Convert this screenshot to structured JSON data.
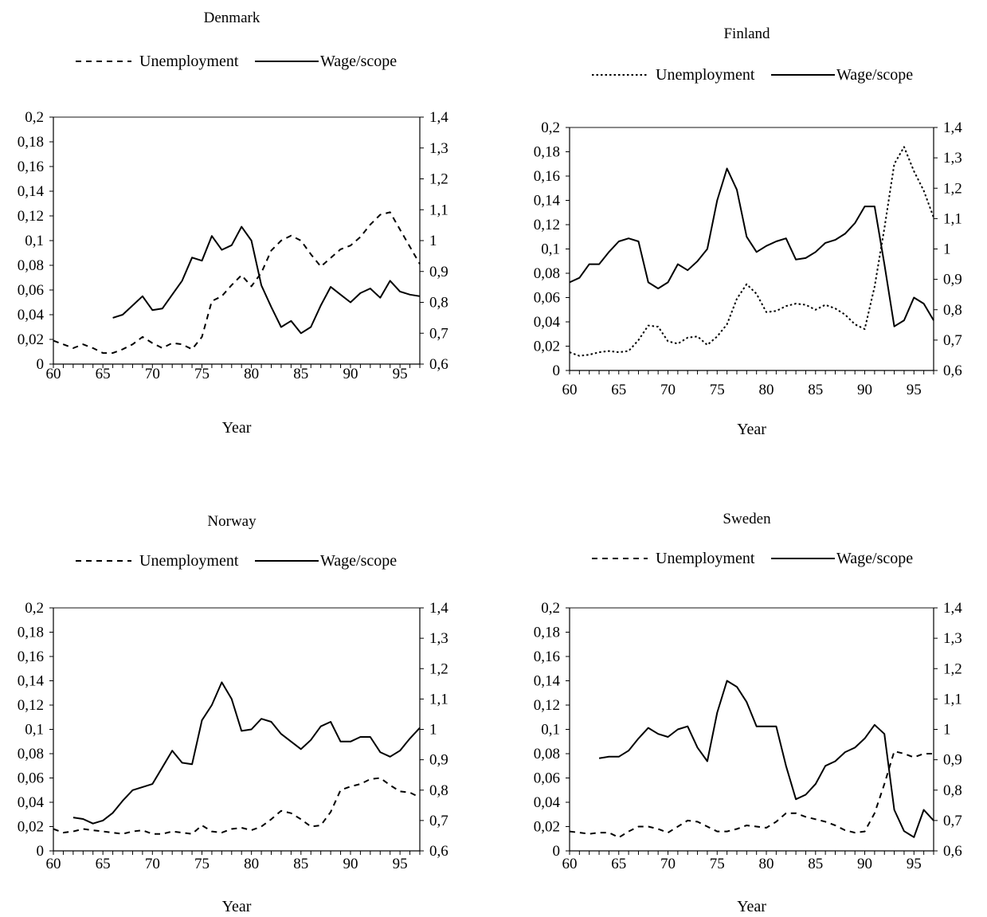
{
  "chart_data": [
    {
      "type": "line",
      "title": "Denmark",
      "xlabel": "Year",
      "xlim": [
        60,
        97
      ],
      "xticks": [
        60,
        65,
        70,
        75,
        80,
        85,
        90,
        95
      ],
      "x_tick_labels": [
        "60",
        "65",
        "70",
        "75",
        "80",
        "85",
        "90",
        "95"
      ],
      "ylim_left": [
        0,
        0.2
      ],
      "y_left_tick_labels": [
        "0",
        "0,02",
        "0,04",
        "0,06",
        "0,08",
        "0,1",
        "0,12",
        "0,14",
        "0,16",
        "0,18",
        "0,2"
      ],
      "ylim_right": [
        0.6,
        1.4
      ],
      "y_right_tick_labels": [
        "0,6",
        "0,7",
        "0,8",
        "0,9",
        "1",
        "1,1",
        "1,2",
        "1,3",
        "1,4"
      ],
      "legend_position": "top",
      "series": [
        {
          "name": "Unemployment",
          "axis": "left",
          "style": "dashed",
          "x": [
            60,
            61,
            62,
            63,
            64,
            65,
            66,
            67,
            68,
            69,
            70,
            71,
            72,
            73,
            74,
            75,
            76,
            77,
            78,
            79,
            80,
            81,
            82,
            83,
            84,
            85,
            86,
            87,
            88,
            89,
            90,
            91,
            92,
            93,
            94,
            95,
            96,
            97
          ],
          "values": [
            0.019,
            0.016,
            0.013,
            0.016,
            0.013,
            0.009,
            0.009,
            0.012,
            0.016,
            0.022,
            0.017,
            0.013,
            0.017,
            0.016,
            0.012,
            0.022,
            0.051,
            0.055,
            0.064,
            0.072,
            0.063,
            0.074,
            0.092,
            0.1,
            0.104,
            0.1,
            0.089,
            0.079,
            0.086,
            0.093,
            0.096,
            0.103,
            0.113,
            0.121,
            0.123,
            0.109,
            0.095,
            0.081
          ]
        },
        {
          "name": "Wage/scope",
          "axis": "right",
          "style": "solid",
          "x": [
            66,
            67,
            68,
            69,
            70,
            71,
            72,
            73,
            74,
            75,
            76,
            77,
            78,
            79,
            80,
            81,
            82,
            83,
            84,
            85,
            86,
            87,
            88,
            89,
            90,
            91,
            92,
            93,
            94,
            95,
            96,
            97
          ],
          "values": [
            0.75,
            0.76,
            0.79,
            0.82,
            0.775,
            0.78,
            0.825,
            0.87,
            0.945,
            0.935,
            1.015,
            0.97,
            0.985,
            1.045,
            1.0,
            0.855,
            0.785,
            0.72,
            0.74,
            0.7,
            0.72,
            0.79,
            0.85,
            0.825,
            0.8,
            0.83,
            0.845,
            0.815,
            0.87,
            0.835,
            0.825,
            0.82
          ]
        }
      ]
    },
    {
      "type": "line",
      "title": "Finland",
      "xlabel": "Year",
      "xlim": [
        60,
        97
      ],
      "xticks": [
        60,
        65,
        70,
        75,
        80,
        85,
        90,
        95
      ],
      "x_tick_labels": [
        "60",
        "65",
        "70",
        "75",
        "80",
        "85",
        "90",
        "95"
      ],
      "ylim_left": [
        0,
        0.2
      ],
      "y_left_tick_labels": [
        "0",
        "0,02",
        "0,04",
        "0,06",
        "0,08",
        "0,1",
        "0,12",
        "0,14",
        "0,16",
        "0,18",
        "0,2"
      ],
      "ylim_right": [
        0.6,
        1.4
      ],
      "y_right_tick_labels": [
        "0,6",
        "0,7",
        "0,8",
        "0,9",
        "1",
        "1,1",
        "1,2",
        "1,3",
        "1,4"
      ],
      "legend_position": "top",
      "series": [
        {
          "name": "Unemployment",
          "axis": "left",
          "style": "dotted",
          "x": [
            60,
            61,
            62,
            63,
            64,
            65,
            66,
            67,
            68,
            69,
            70,
            71,
            72,
            73,
            74,
            75,
            76,
            77,
            78,
            79,
            80,
            81,
            82,
            83,
            84,
            85,
            86,
            87,
            88,
            89,
            90,
            91,
            92,
            93,
            94,
            95,
            96,
            97
          ],
          "values": [
            0.015,
            0.012,
            0.013,
            0.015,
            0.016,
            0.015,
            0.016,
            0.025,
            0.037,
            0.036,
            0.024,
            0.022,
            0.027,
            0.028,
            0.021,
            0.028,
            0.038,
            0.059,
            0.071,
            0.063,
            0.048,
            0.049,
            0.053,
            0.055,
            0.054,
            0.05,
            0.054,
            0.051,
            0.046,
            0.038,
            0.034,
            0.069,
            0.117,
            0.17,
            0.184,
            0.164,
            0.148,
            0.126
          ]
        },
        {
          "name": "Wage/scope",
          "axis": "right",
          "style": "solid",
          "x": [
            60,
            61,
            62,
            63,
            64,
            65,
            66,
            67,
            68,
            69,
            70,
            71,
            72,
            73,
            74,
            75,
            76,
            77,
            78,
            79,
            80,
            81,
            82,
            83,
            84,
            85,
            86,
            87,
            88,
            89,
            90,
            91,
            92,
            93,
            94,
            95,
            96,
            97
          ],
          "values": [
            0.89,
            0.905,
            0.95,
            0.95,
            0.99,
            1.025,
            1.035,
            1.025,
            0.89,
            0.87,
            0.89,
            0.95,
            0.93,
            0.96,
            1.0,
            1.16,
            1.265,
            1.195,
            1.04,
            0.99,
            1.01,
            1.025,
            1.035,
            0.965,
            0.97,
            0.99,
            1.02,
            1.03,
            1.05,
            1.085,
            1.14,
            1.14,
            0.95,
            0.745,
            0.765,
            0.84,
            0.82,
            0.765
          ]
        }
      ]
    },
    {
      "type": "line",
      "title": "Norway",
      "xlabel": "Year",
      "xlim": [
        60,
        97
      ],
      "xticks": [
        60,
        65,
        70,
        75,
        80,
        85,
        90,
        95
      ],
      "x_tick_labels": [
        "60",
        "65",
        "70",
        "75",
        "80",
        "85",
        "90",
        "95"
      ],
      "ylim_left": [
        0,
        0.2
      ],
      "y_left_tick_labels": [
        "0",
        "0,02",
        "0,04",
        "0,06",
        "0,08",
        "0,1",
        "0,12",
        "0,14",
        "0,16",
        "0,18",
        "0,2"
      ],
      "ylim_right": [
        0.6,
        1.4
      ],
      "y_right_tick_labels": [
        "0,6",
        "0,7",
        "0,8",
        "0,9",
        "1",
        "1,1",
        "1,2",
        "1,3",
        "1,4"
      ],
      "legend_position": "top",
      "series": [
        {
          "name": "Unemployment",
          "axis": "left",
          "style": "dashed",
          "x": [
            60,
            61,
            62,
            63,
            64,
            65,
            66,
            67,
            68,
            69,
            70,
            71,
            72,
            73,
            74,
            75,
            76,
            77,
            78,
            79,
            80,
            81,
            82,
            83,
            84,
            85,
            86,
            87,
            88,
            89,
            90,
            91,
            92,
            93,
            94,
            95,
            96,
            97
          ],
          "values": [
            0.018,
            0.015,
            0.016,
            0.018,
            0.017,
            0.016,
            0.015,
            0.014,
            0.016,
            0.017,
            0.014,
            0.014,
            0.016,
            0.015,
            0.014,
            0.021,
            0.016,
            0.015,
            0.018,
            0.019,
            0.017,
            0.02,
            0.026,
            0.033,
            0.031,
            0.026,
            0.02,
            0.021,
            0.032,
            0.05,
            0.053,
            0.055,
            0.059,
            0.06,
            0.054,
            0.049,
            0.048,
            0.044
          ]
        },
        {
          "name": "Wage/scope",
          "axis": "right",
          "style": "solid",
          "x": [
            62,
            63,
            64,
            65,
            66,
            67,
            68,
            69,
            70,
            71,
            72,
            73,
            74,
            75,
            76,
            77,
            78,
            79,
            80,
            81,
            82,
            83,
            84,
            85,
            86,
            87,
            88,
            89,
            90,
            91,
            92,
            93,
            94,
            95,
            96,
            97
          ],
          "values": [
            0.71,
            0.705,
            0.69,
            0.7,
            0.725,
            0.765,
            0.8,
            0.81,
            0.82,
            0.875,
            0.93,
            0.89,
            0.885,
            1.03,
            1.08,
            1.155,
            1.1,
            0.995,
            1.0,
            1.035,
            1.025,
            0.985,
            0.96,
            0.935,
            0.965,
            1.01,
            1.025,
            0.96,
            0.96,
            0.975,
            0.975,
            0.925,
            0.91,
            0.93,
            0.97,
            1.005
          ]
        }
      ]
    },
    {
      "type": "line",
      "title": "Sweden",
      "xlabel": "Year",
      "xlim": [
        60,
        97
      ],
      "xticks": [
        60,
        65,
        70,
        75,
        80,
        85,
        90,
        95
      ],
      "x_tick_labels": [
        "60",
        "65",
        "70",
        "75",
        "80",
        "85",
        "90",
        "95"
      ],
      "ylim_left": [
        0,
        0.2
      ],
      "y_left_tick_labels": [
        "0",
        "0,02",
        "0,04",
        "0,06",
        "0,08",
        "0,1",
        "0,12",
        "0,14",
        "0,16",
        "0,18",
        "0,2"
      ],
      "ylim_right": [
        0.6,
        1.4
      ],
      "y_right_tick_labels": [
        "0,6",
        "0,7",
        "0,8",
        "0,9",
        "1",
        "1,1",
        "1,2",
        "1,3",
        "1,4"
      ],
      "legend_position": "top",
      "series": [
        {
          "name": "Unemployment",
          "axis": "left",
          "style": "dashed",
          "x": [
            60,
            61,
            62,
            63,
            64,
            65,
            66,
            67,
            68,
            69,
            70,
            71,
            72,
            73,
            74,
            75,
            76,
            77,
            78,
            79,
            80,
            81,
            82,
            83,
            84,
            85,
            86,
            87,
            88,
            89,
            90,
            91,
            92,
            93,
            94,
            95,
            96,
            97
          ],
          "values": [
            0.016,
            0.015,
            0.014,
            0.015,
            0.015,
            0.011,
            0.016,
            0.02,
            0.02,
            0.018,
            0.015,
            0.02,
            0.025,
            0.024,
            0.02,
            0.016,
            0.016,
            0.018,
            0.021,
            0.02,
            0.019,
            0.024,
            0.031,
            0.031,
            0.028,
            0.026,
            0.024,
            0.021,
            0.017,
            0.015,
            0.016,
            0.031,
            0.055,
            0.082,
            0.08,
            0.077,
            0.08,
            0.08
          ]
        },
        {
          "name": "Wage/scope",
          "axis": "right",
          "style": "solid",
          "x": [
            63,
            64,
            65,
            66,
            67,
            68,
            69,
            70,
            71,
            72,
            73,
            74,
            75,
            76,
            77,
            78,
            79,
            80,
            81,
            82,
            83,
            84,
            85,
            86,
            87,
            88,
            89,
            90,
            91,
            92,
            93,
            94,
            95,
            96,
            97
          ],
          "values": [
            0.905,
            0.91,
            0.91,
            0.93,
            0.97,
            1.005,
            0.985,
            0.975,
            1.0,
            1.01,
            0.94,
            0.895,
            1.055,
            1.16,
            1.14,
            1.09,
            1.01,
            1.01,
            1.01,
            0.88,
            0.77,
            0.785,
            0.82,
            0.88,
            0.895,
            0.925,
            0.94,
            0.97,
            1.015,
            0.985,
            0.735,
            0.665,
            0.645,
            0.735,
            0.7
          ]
        }
      ]
    }
  ]
}
